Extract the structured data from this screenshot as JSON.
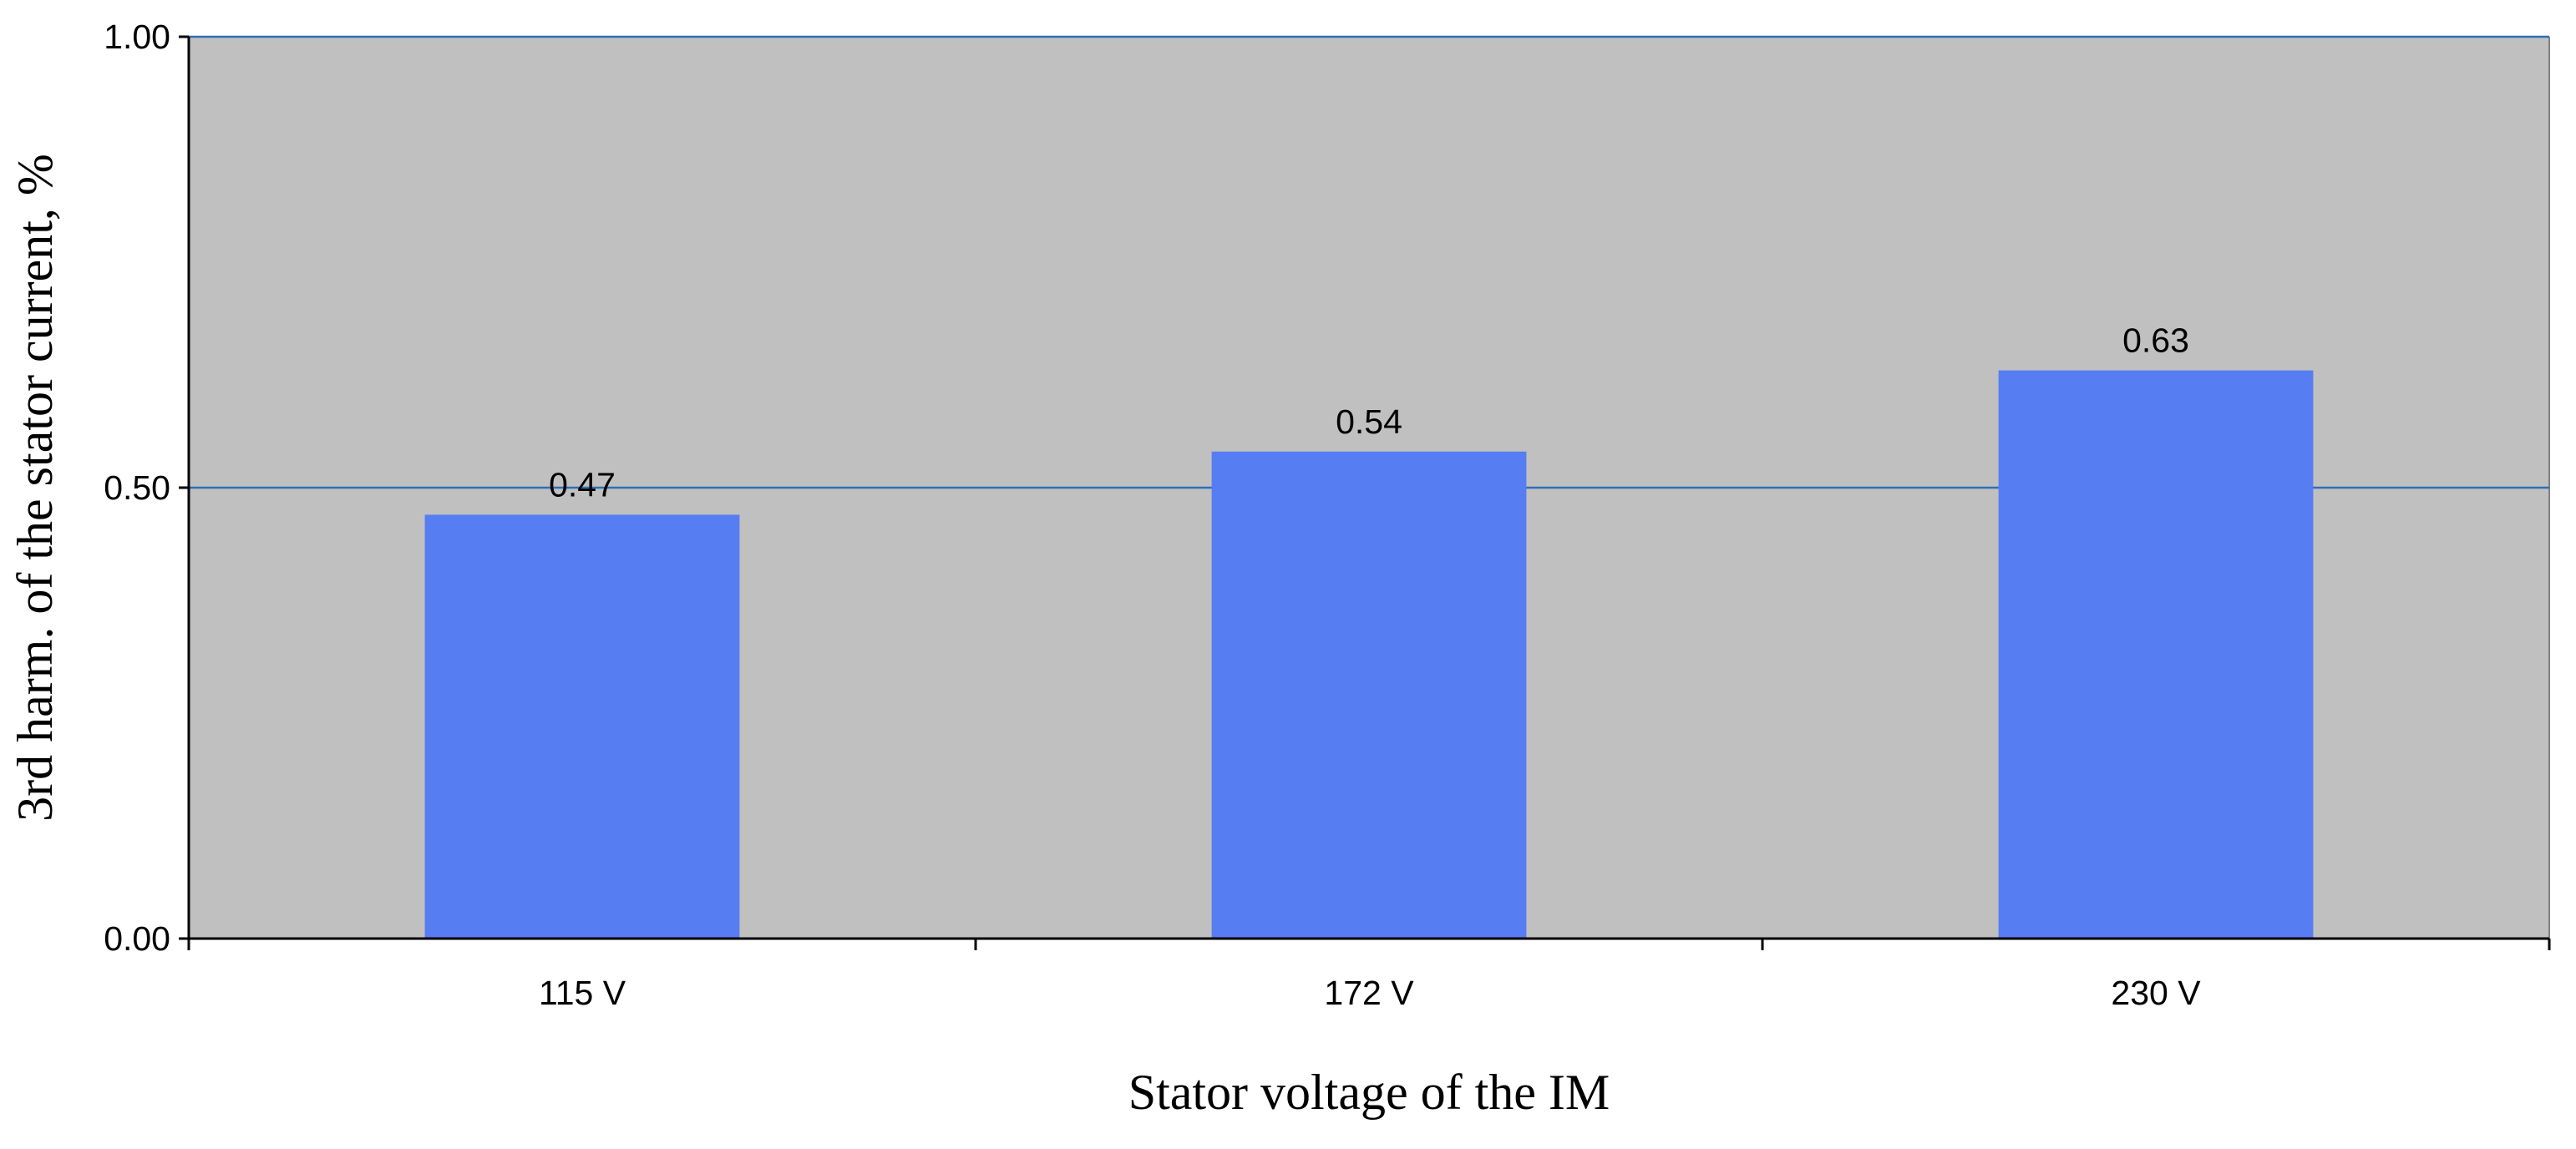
{
  "chart_data": {
    "type": "bar",
    "categories": [
      "115 V",
      "172 V",
      "230 V"
    ],
    "values": [
      0.47,
      0.54,
      0.63
    ],
    "data_labels": [
      "0.47",
      "0.54",
      "0.63"
    ],
    "title": "",
    "xlabel": "Stator voltage of the IM",
    "ylabel": "3rd harm. of the stator current, %",
    "ylim": [
      0,
      1
    ],
    "yticks": [
      0,
      0.5,
      1
    ],
    "ytick_labels": [
      "0.00",
      "0.50",
      "1.00"
    ],
    "grid": "horizontal",
    "legend": "none",
    "colors": {
      "bar": "#577df3",
      "plot_background": "#c0c0c0",
      "gridline": "#2e6fb5",
      "axis": "#000000"
    }
  }
}
